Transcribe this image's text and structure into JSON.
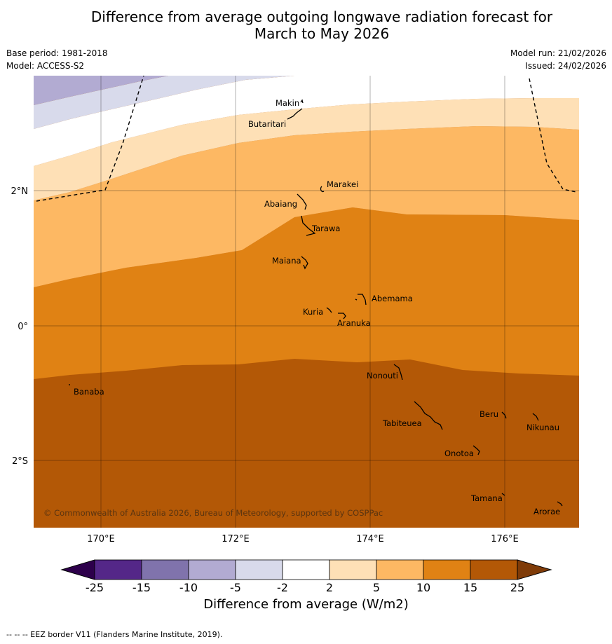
{
  "title_line1": "Difference from average outgoing longwave radiation forecast for",
  "title_line2": "March to May 2026",
  "base_period": "Base period: 1981-2018",
  "model": "Model: ACCESS-S2",
  "model_run": "Model run: 21/02/2026",
  "issued": "Issued: 24/02/2026",
  "copyright": "© Commonwealth of Australia 2026, Bureau of Meteorology, supported by COSPPac",
  "colorbar_label": "Difference from average (W/m2)",
  "footnote": "--  --  -- EEZ border V11 (Flanders Marine Institute, 2019).",
  "axes": {
    "x_ticks": [
      "170°E",
      "172°E",
      "174°E",
      "176°E"
    ],
    "y_ticks": [
      "2°N",
      "0°",
      "2°S"
    ]
  },
  "legend": {
    "ticks": [
      "-25",
      "-15",
      "-10",
      "-5",
      "-2",
      "2",
      "5",
      "10",
      "15",
      "25"
    ],
    "colors": [
      "#2d004b",
      "#542788",
      "#8073ac",
      "#b2abd2",
      "#d8daeb",
      "#ffffff",
      "#fee0b6",
      "#fdb863",
      "#e08214",
      "#b35806",
      "#7f3b08"
    ]
  },
  "places": [
    {
      "name": "Makin"
    },
    {
      "name": "Butaritari"
    },
    {
      "name": "Marakei"
    },
    {
      "name": "Abaiang"
    },
    {
      "name": "Tarawa"
    },
    {
      "name": "Maiana"
    },
    {
      "name": "Abemama"
    },
    {
      "name": "Kuria"
    },
    {
      "name": "Aranuka"
    },
    {
      "name": "Banaba"
    },
    {
      "name": "Nonouti"
    },
    {
      "name": "Tabiteuea"
    },
    {
      "name": "Beru"
    },
    {
      "name": "Nikunau"
    },
    {
      "name": "Onotoa"
    },
    {
      "name": "Tamana"
    },
    {
      "name": "Arorae"
    }
  ]
}
